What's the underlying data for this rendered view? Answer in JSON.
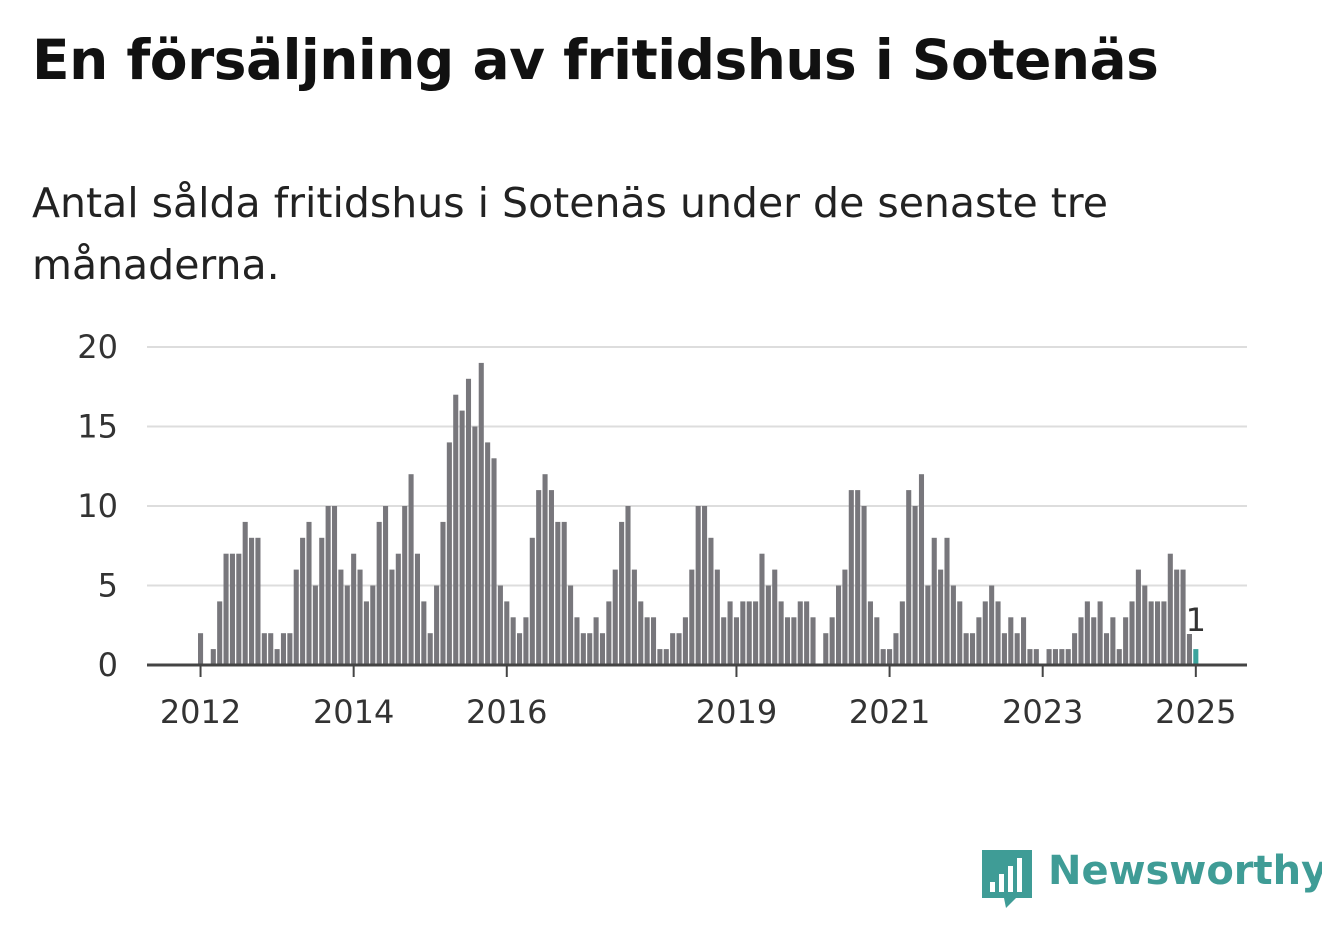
{
  "title": "En försäljning av fritidshus i Sotenäs",
  "subtitle": "Antal sålda fritidshus i Sotenäs under de senaste tre månaderna.",
  "logo_text": "Newsworthy",
  "colors": {
    "bar": "#78777c",
    "highlight": "#3aa39c",
    "grid": "#dddddd",
    "baseline": "#444444",
    "brand": "#3f9c96"
  },
  "chart_data": {
    "type": "bar",
    "title": "En försäljning av fritidshus i Sotenäs",
    "subtitle": "Antal sålda fritidshus i Sotenäs under de senaste tre månaderna.",
    "xlabel": "",
    "ylabel": "",
    "ylim": [
      0,
      20
    ],
    "yticks": [
      0,
      5,
      10,
      15,
      20
    ],
    "xticks": [
      "2012",
      "2014",
      "2016",
      "2019",
      "2021",
      "2023",
      "2025"
    ],
    "grid": true,
    "first_period_year": 2012,
    "values": [
      2,
      0,
      1,
      4,
      7,
      7,
      7,
      9,
      8,
      8,
      2,
      2,
      1,
      2,
      2,
      6,
      8,
      9,
      5,
      8,
      10,
      10,
      6,
      5,
      7,
      6,
      4,
      5,
      9,
      10,
      6,
      7,
      10,
      12,
      7,
      4,
      2,
      5,
      9,
      14,
      17,
      16,
      18,
      15,
      19,
      14,
      13,
      5,
      4,
      3,
      2,
      3,
      8,
      11,
      12,
      11,
      9,
      9,
      5,
      3,
      2,
      2,
      3,
      2,
      4,
      6,
      9,
      10,
      6,
      4,
      3,
      3,
      1,
      1,
      2,
      2,
      3,
      6,
      10,
      10,
      8,
      6,
      3,
      4,
      3,
      4,
      4,
      4,
      7,
      5,
      6,
      4,
      3,
      3,
      4,
      4,
      3,
      0,
      2,
      3,
      5,
      6,
      11,
      11,
      10,
      4,
      3,
      1,
      1,
      2,
      4,
      11,
      10,
      12,
      5,
      8,
      6,
      8,
      5,
      4,
      2,
      2,
      3,
      4,
      5,
      4,
      2,
      3,
      2,
      3,
      1,
      1,
      0,
      1,
      1,
      1,
      1,
      2,
      3,
      4,
      3,
      4,
      2,
      3,
      1,
      3,
      4,
      6,
      5,
      4,
      4,
      4,
      7,
      6,
      6,
      2,
      1
    ],
    "highlight_last": true,
    "annotations": [
      {
        "text": "1",
        "target": "last"
      }
    ]
  }
}
